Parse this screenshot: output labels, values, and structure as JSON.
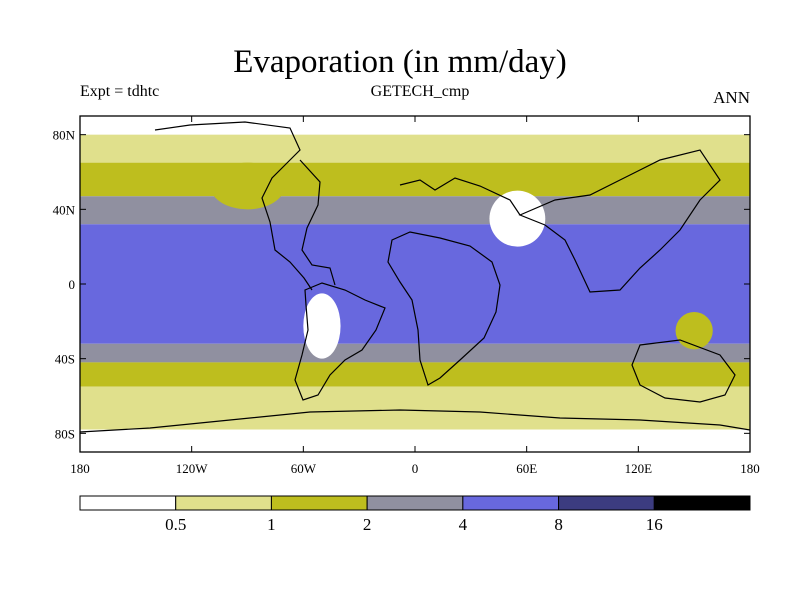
{
  "header": {
    "title": "Evaporation (in mm/day)",
    "left_label": "Expt = tdhtc",
    "center_label": "GETECH_cmp",
    "right_label": "ANN"
  },
  "chart_data": {
    "type": "heatmap",
    "title": "Evaporation (in mm/day)",
    "projection": "cylindrical equidistant",
    "xlim": [
      -180,
      180
    ],
    "ylim": [
      -90,
      90
    ],
    "x_ticks": [
      {
        "value": -180,
        "label": "180"
      },
      {
        "value": -120,
        "label": "120W"
      },
      {
        "value": -60,
        "label": "60W"
      },
      {
        "value": 0,
        "label": "0"
      },
      {
        "value": 60,
        "label": "60E"
      },
      {
        "value": 120,
        "label": "120E"
      },
      {
        "value": 180,
        "label": "180"
      }
    ],
    "y_ticks": [
      {
        "value": 80,
        "label": "80N"
      },
      {
        "value": 40,
        "label": "40N"
      },
      {
        "value": 0,
        "label": "0"
      },
      {
        "value": -40,
        "label": "40S"
      },
      {
        "value": -80,
        "label": "80S"
      }
    ],
    "levels": [
      0.5,
      1,
      2,
      4,
      8,
      16
    ],
    "level_labels": [
      "0.5",
      "1",
      "2",
      "4",
      "8",
      "16"
    ],
    "colors": [
      "#ffffff",
      "#e0e08c",
      "#bebe1e",
      "#9090a0",
      "#6868de",
      "#3c3c80",
      "#000000"
    ],
    "zonal_bands": [
      {
        "lat": [
          80,
          90
        ],
        "value": 0.3
      },
      {
        "lat": [
          65,
          80
        ],
        "value": 0.8
      },
      {
        "lat": [
          47,
          65
        ],
        "value": 1.5
      },
      {
        "lat": [
          32,
          47
        ],
        "value": 3.0
      },
      {
        "lat": [
          -32,
          32
        ],
        "value": 5.5
      },
      {
        "lat": [
          -42,
          -32
        ],
        "value": 3.0
      },
      {
        "lat": [
          -55,
          -42
        ],
        "value": 1.5
      },
      {
        "lat": [
          -78,
          -55
        ],
        "value": 0.8
      },
      {
        "lat": [
          -90,
          -78
        ],
        "value": 0.3
      }
    ],
    "regional_anomalies": [
      {
        "lon": [
          -60,
          -40
        ],
        "lat": [
          -40,
          -5
        ],
        "value": 0.3
      },
      {
        "lon": [
          40,
          70
        ],
        "lat": [
          20,
          50
        ],
        "value": 0.3
      },
      {
        "lon": [
          -110,
          -70
        ],
        "lat": [
          40,
          65
        ],
        "value": 1.5
      },
      {
        "lon": [
          140,
          160
        ],
        "lat": [
          -35,
          -15
        ],
        "value": 1.5
      }
    ]
  }
}
